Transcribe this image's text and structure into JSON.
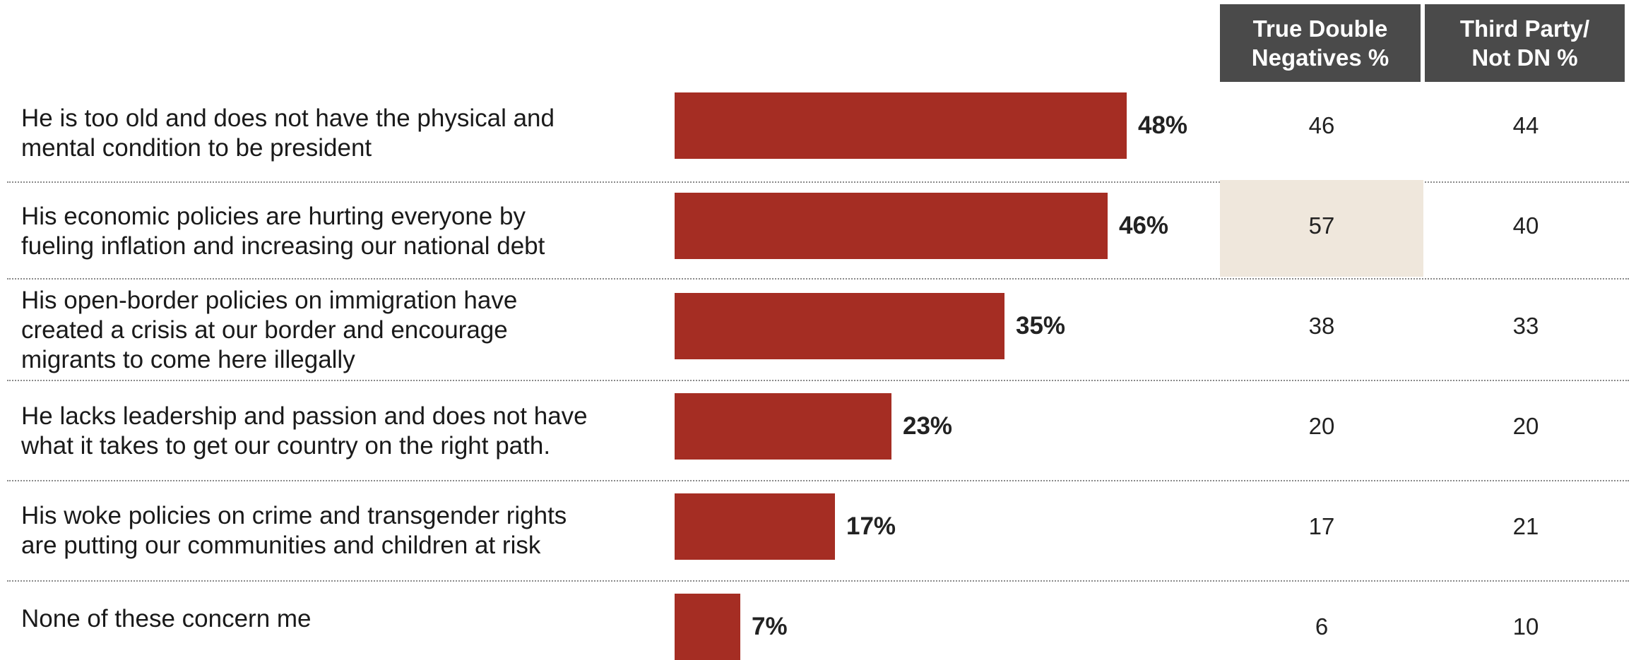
{
  "columns": {
    "true_double_negatives": [
      "True Double",
      "Negatives %"
    ],
    "third_party": [
      "Third Party/",
      "Not DN %"
    ]
  },
  "colors": {
    "bar": "#a52d23",
    "header_bg": "#4a4a4a",
    "highlight": "#efe7dc"
  },
  "rows": [
    {
      "label": "He is too old and does not have the physical and\nmental condition to be president",
      "true_dn": "46",
      "third_party": "44",
      "highlight": false
    },
    {
      "label": "His economic policies are hurting everyone by\nfueling inflation and increasing our national debt",
      "true_dn": "57",
      "third_party": "40",
      "highlight": true
    },
    {
      "label": "His open-border policies on immigration have\ncreated a crisis at our border and encourage\nmigrants to come here illegally",
      "true_dn": "38",
      "third_party": "33",
      "highlight": false
    },
    {
      "label": "He lacks leadership and passion and does not have\nwhat it takes to get our country on the right path.",
      "true_dn": "20",
      "third_party": "20",
      "highlight": false
    },
    {
      "label": "His woke policies on crime and transgender rights\nare putting our communities and children at risk",
      "true_dn": "17",
      "third_party": "21",
      "highlight": false
    },
    {
      "label": "None of these concern me",
      "true_dn": "6",
      "third_party": "10",
      "highlight": false
    }
  ],
  "chart_data": {
    "type": "bar",
    "orientation": "horizontal",
    "categories": [
      "He is too old and does not have the physical and mental condition to be president",
      "His economic policies are hurting everyone by fueling inflation and increasing our national debt",
      "His open-border policies on immigration have created a crisis at our border and encourage migrants to come here illegally",
      "He lacks leadership and passion and does not have what it takes to get our country on the right path.",
      "His woke policies on crime and transgender rights are putting our communities and children at risk",
      "None of these concern me"
    ],
    "values": [
      48,
      46,
      35,
      23,
      17,
      7
    ],
    "value_labels": [
      "48%",
      "46%",
      "35%",
      "23%",
      "17%",
      "7%"
    ],
    "xlim": [
      0,
      100
    ],
    "grid": false,
    "legend": "none"
  }
}
